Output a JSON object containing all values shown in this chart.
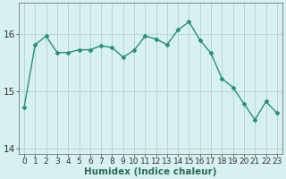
{
  "x": [
    0,
    1,
    2,
    3,
    4,
    5,
    6,
    7,
    8,
    9,
    10,
    11,
    12,
    13,
    14,
    15,
    16,
    17,
    18,
    19,
    20,
    21,
    22,
    23
  ],
  "y": [
    14.72,
    15.82,
    15.97,
    15.68,
    15.68,
    15.73,
    15.73,
    15.8,
    15.77,
    15.6,
    15.72,
    15.97,
    15.92,
    15.82,
    16.08,
    16.22,
    15.9,
    15.67,
    15.22,
    15.07,
    14.78,
    14.5,
    14.82,
    14.62
  ],
  "line_color": "#2e8b7a",
  "marker": "D",
  "markersize": 2.5,
  "linewidth": 1.0,
  "bg_color": "#d7f0f0",
  "grid_color": "#b5d8d5",
  "xlabel": "Humidex (Indice chaleur)",
  "xlabel_fontsize": 7.5,
  "tick_fontsize": 6.5,
  "ytick_fontsize": 7.5,
  "ylim": [
    13.9,
    16.55
  ],
  "yticks": [
    14,
    15,
    16
  ],
  "xlim": [
    -0.5,
    23.5
  ],
  "title_color": "#2e6b5a"
}
